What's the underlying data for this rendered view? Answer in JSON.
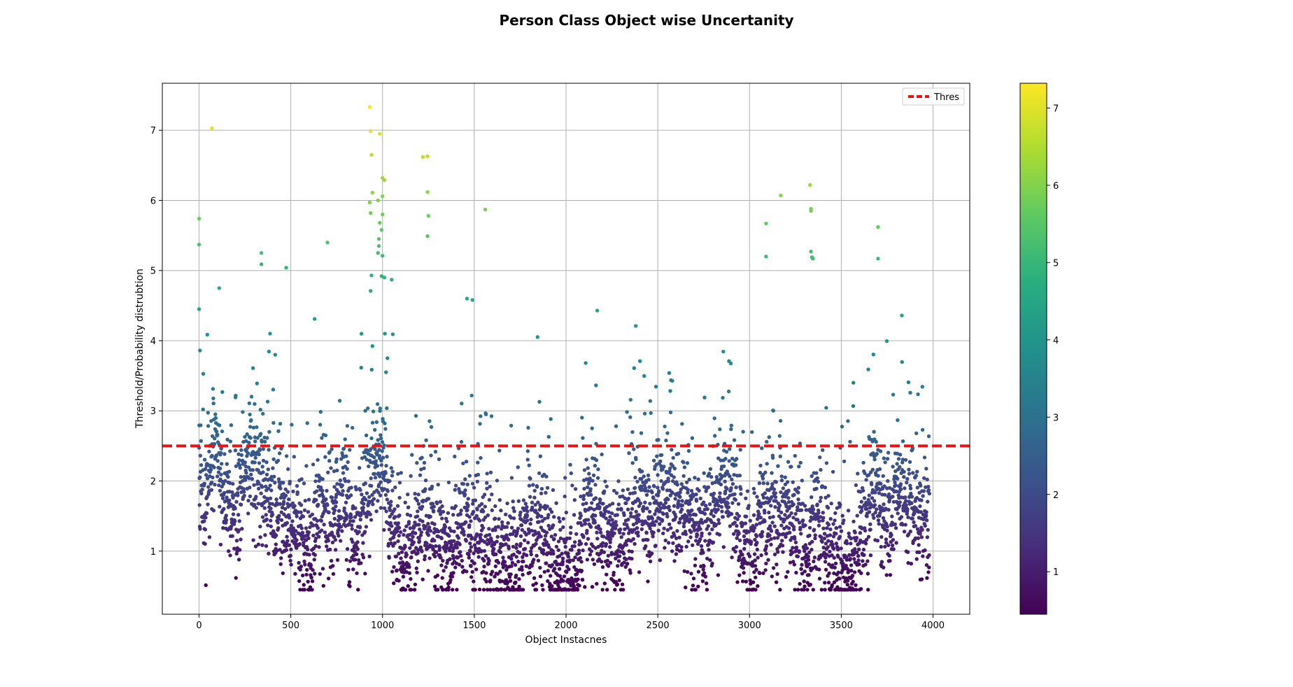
{
  "chart_data": {
    "type": "scatter",
    "title": "Person Class Object wise Uncertanity",
    "xlabel": "Object Instacnes",
    "ylabel": "Threshold/Probability distrubtion",
    "xlim": [
      -200,
      4200
    ],
    "ylim": [
      0.1,
      7.67
    ],
    "x_ticks": [
      0,
      500,
      1000,
      1500,
      2000,
      2500,
      3000,
      3500,
      4000
    ],
    "y_ticks": [
      1,
      2,
      3,
      4,
      5,
      6,
      7
    ],
    "grid": true,
    "colormap": "viridis",
    "color_range": [
      0.45,
      7.32
    ],
    "colorbar_ticks": [
      1,
      2,
      3,
      4,
      5,
      6,
      7
    ],
    "legend": {
      "position": "top-right",
      "entries": [
        {
          "label": "Thres",
          "style": "dashed",
          "color": "#ee1111"
        }
      ]
    },
    "threshold": {
      "name": "Thres",
      "y": 2.5,
      "color": "#ee1111"
    },
    "series": [
      {
        "x_range": [
          0,
          3980
        ],
        "num_points": 3981,
        "notable_points": [
          [
            0,
            5.74
          ],
          [
            0,
            5.37
          ],
          [
            0,
            4.45
          ],
          [
            5,
            3.86
          ],
          [
            70,
            7.03
          ],
          [
            110,
            4.75
          ],
          [
            340,
            5.25
          ],
          [
            340,
            5.09
          ],
          [
            475,
            5.04
          ],
          [
            700,
            5.4
          ],
          [
            630,
            4.31
          ],
          [
            930,
            7.33
          ],
          [
            935,
            6.99
          ],
          [
            985,
            6.95
          ],
          [
            940,
            6.65
          ],
          [
            1000,
            6.32
          ],
          [
            1010,
            6.29
          ],
          [
            945,
            6.11
          ],
          [
            1000,
            6.06
          ],
          [
            930,
            5.97
          ],
          [
            975,
            6.0
          ],
          [
            935,
            5.82
          ],
          [
            1000,
            5.8
          ],
          [
            985,
            5.68
          ],
          [
            995,
            5.58
          ],
          [
            980,
            5.45
          ],
          [
            980,
            5.35
          ],
          [
            975,
            5.25
          ],
          [
            1000,
            5.21
          ],
          [
            940,
            4.93
          ],
          [
            995,
            4.92
          ],
          [
            1010,
            4.9
          ],
          [
            1050,
            4.87
          ],
          [
            935,
            4.71
          ],
          [
            1220,
            6.62
          ],
          [
            1245,
            6.63
          ],
          [
            1245,
            6.12
          ],
          [
            1250,
            5.78
          ],
          [
            1245,
            5.49
          ],
          [
            1560,
            5.87
          ],
          [
            1460,
            4.6
          ],
          [
            1490,
            4.58
          ],
          [
            2170,
            4.43
          ],
          [
            2380,
            4.21
          ],
          [
            3090,
            5.67
          ],
          [
            3090,
            5.2
          ],
          [
            3170,
            6.07
          ],
          [
            3330,
            6.22
          ],
          [
            3335,
            5.88
          ],
          [
            3335,
            5.85
          ],
          [
            3335,
            5.27
          ],
          [
            3340,
            5.19
          ],
          [
            3345,
            5.17
          ],
          [
            3700,
            5.62
          ],
          [
            3700,
            5.17
          ],
          [
            3830,
            4.36
          ]
        ]
      }
    ]
  }
}
